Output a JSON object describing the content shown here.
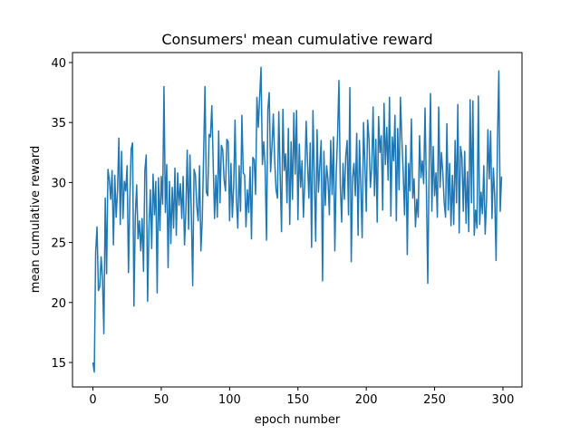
{
  "chart_data": {
    "type": "line",
    "title": "Consumers' mean cumulative reward",
    "x_label": "epoch number",
    "y_label": "mean cumulative reward",
    "xlim": [
      -14.95,
      313.95
    ],
    "ylim": [
      12.96,
      40.83
    ],
    "xticks": [
      0,
      50,
      100,
      150,
      200,
      250,
      300
    ],
    "yticks": [
      15,
      20,
      25,
      30,
      35,
      40
    ],
    "grid": false,
    "x": [
      0,
      1,
      2,
      3,
      4,
      5,
      6,
      7,
      8,
      9,
      10,
      11,
      12,
      13,
      14,
      15,
      16,
      17,
      18,
      19,
      20,
      21,
      22,
      23,
      24,
      25,
      26,
      27,
      28,
      29,
      30,
      31,
      32,
      33,
      34,
      35,
      36,
      37,
      38,
      39,
      40,
      41,
      42,
      43,
      44,
      45,
      46,
      47,
      48,
      49,
      50,
      51,
      52,
      53,
      54,
      55,
      56,
      57,
      58,
      59,
      60,
      61,
      62,
      63,
      64,
      65,
      66,
      67,
      68,
      69,
      70,
      71,
      72,
      73,
      74,
      75,
      76,
      77,
      78,
      79,
      80,
      81,
      82,
      83,
      84,
      85,
      86,
      87,
      88,
      89,
      90,
      91,
      92,
      93,
      94,
      95,
      96,
      97,
      98,
      99,
      100,
      101,
      102,
      103,
      104,
      105,
      106,
      107,
      108,
      109,
      110,
      111,
      112,
      113,
      114,
      115,
      116,
      117,
      118,
      119,
      120,
      121,
      122,
      123,
      124,
      125,
      126,
      127,
      128,
      129,
      130,
      131,
      132,
      133,
      134,
      135,
      136,
      137,
      138,
      139,
      140,
      141,
      142,
      143,
      144,
      145,
      146,
      147,
      148,
      149,
      150,
      151,
      152,
      153,
      154,
      155,
      156,
      157,
      158,
      159,
      160,
      161,
      162,
      163,
      164,
      165,
      166,
      167,
      168,
      169,
      170,
      171,
      172,
      173,
      174,
      175,
      176,
      177,
      178,
      179,
      180,
      181,
      182,
      183,
      184,
      185,
      186,
      187,
      188,
      189,
      190,
      191,
      192,
      193,
      194,
      195,
      196,
      197,
      198,
      199,
      200,
      201,
      202,
      203,
      204,
      205,
      206,
      207,
      208,
      209,
      210,
      211,
      212,
      213,
      214,
      215,
      216,
      217,
      218,
      219,
      220,
      221,
      222,
      223,
      224,
      225,
      226,
      227,
      228,
      229,
      230,
      231,
      232,
      233,
      234,
      235,
      236,
      237,
      238,
      239,
      240,
      241,
      242,
      243,
      244,
      245,
      246,
      247,
      248,
      249,
      250,
      251,
      252,
      253,
      254,
      255,
      256,
      257,
      258,
      259,
      260,
      261,
      262,
      263,
      264,
      265,
      266,
      267,
      268,
      269,
      270,
      271,
      272,
      273,
      274,
      275,
      276,
      277,
      278,
      279,
      280,
      281,
      282,
      283,
      284,
      285,
      286,
      287,
      288,
      289,
      290,
      291,
      292,
      293,
      294,
      295,
      296,
      297,
      298,
      299
    ],
    "series": [
      {
        "color": "#1f77b4",
        "values": [
          15.0,
          14.2,
          24.2,
          26.3,
          21.0,
          21.3,
          23.8,
          22.0,
          17.4,
          28.7,
          22.4,
          31.1,
          30.2,
          28.6,
          31.0,
          24.8,
          30.6,
          27.1,
          29.4,
          33.7,
          26.5,
          32.6,
          27.0,
          30.1,
          29.3,
          31.4,
          22.5,
          28.6,
          32.8,
          33.3,
          19.7,
          27.2,
          29.8,
          25.3,
          26.8,
          24.3,
          27.0,
          22.6,
          31.0,
          32.3,
          20.1,
          26.3,
          29.4,
          24.5,
          30.7,
          27.3,
          30.1,
          20.8,
          30.4,
          26.0,
          30.5,
          28.2,
          38.0,
          27.5,
          31.5,
          22.9,
          30.1,
          24.9,
          29.6,
          26.2,
          31.2,
          25.6,
          30.8,
          28.1,
          29.9,
          27.0,
          30.5,
          24.8,
          27.6,
          32.7,
          26.1,
          32.3,
          27.4,
          21.4,
          31.1,
          30.6,
          28.0,
          26.8,
          31.4,
          24.3,
          26.9,
          32.4,
          38.0,
          29.2,
          28.9,
          34.0,
          33.8,
          36.4,
          31.6,
          27.0,
          30.6,
          27.1,
          34.3,
          28.3,
          33.1,
          32.7,
          30.2,
          29.3,
          33.6,
          33.4,
          26.8,
          31.6,
          27.1,
          29.7,
          35.2,
          28.6,
          26.2,
          31.4,
          27.6,
          35.6,
          30.8,
          30.6,
          26.3,
          29.4,
          27.5,
          31.3,
          25.3,
          32.1,
          31.9,
          29.0,
          37.1,
          34.6,
          37.1,
          39.6,
          31.5,
          33.4,
          31.3,
          25.2,
          36.1,
          37.5,
          30.9,
          33.0,
          35.7,
          31.8,
          29.4,
          28.7,
          35.9,
          30.6,
          25.9,
          36.1,
          31.0,
          32.4,
          28.3,
          34.5,
          26.5,
          33.4,
          28.6,
          35.8,
          30.7,
          36.0,
          26.9,
          33.2,
          29.6,
          31.8,
          27.1,
          30.1,
          35.1,
          31.8,
          28.7,
          33.3,
          24.6,
          36.0,
          30.3,
          25.1,
          34.4,
          29.2,
          31.4,
          33.5,
          21.8,
          32.6,
          28.1,
          31.4,
          30.2,
          27.3,
          33.5,
          29.0,
          33.8,
          24.3,
          30.7,
          33.9,
          38.5,
          29.8,
          26.7,
          31.6,
          28.6,
          32.2,
          33.5,
          27.3,
          37.9,
          23.4,
          30.4,
          31.6,
          28.9,
          34.1,
          25.6,
          33.5,
          29.8,
          25.4,
          35.0,
          31.5,
          27.6,
          35.2,
          33.6,
          29.6,
          31.2,
          36.3,
          28.9,
          33.6,
          26.7,
          35.5,
          32.5,
          33.9,
          27.7,
          36.6,
          31.5,
          34.6,
          30.2,
          37.1,
          27.2,
          33.8,
          31.8,
          35.6,
          26.8,
          34.5,
          29.4,
          37.1,
          33.7,
          30.9,
          27.3,
          33.1,
          24.0,
          31.6,
          29.3,
          35.3,
          28.7,
          30.3,
          26.3,
          28.6,
          27.1,
          33.9,
          30.4,
          31.8,
          29.9,
          36.2,
          29.5,
          21.6,
          31.2,
          37.4,
          27.6,
          33.0,
          28.9,
          30.8,
          27.1,
          36.3,
          29.6,
          32.5,
          30.8,
          28.4,
          27.1,
          34.9,
          27.7,
          31.6,
          26.4,
          30.6,
          26.5,
          33.5,
          28.3,
          36.5,
          25.8,
          33.0,
          32.1,
          27.6,
          32.6,
          26.6,
          30.9,
          25.9,
          36.9,
          28.3,
          36.8,
          25.6,
          27.7,
          26.2,
          37.2,
          26.5,
          29.2,
          27.4,
          31.4,
          25.7,
          28.4,
          34.4,
          30.3,
          34.3,
          27.0,
          31.2,
          28.8,
          23.5,
          33.5,
          39.3,
          27.6,
          30.5
        ]
      }
    ]
  }
}
